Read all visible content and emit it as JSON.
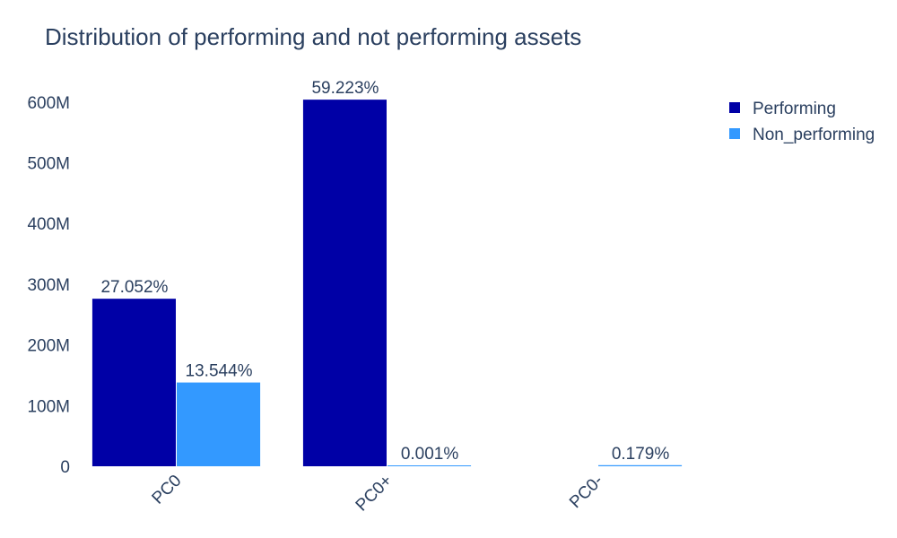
{
  "chart_data": {
    "type": "bar",
    "title": "Distribution of performing and not performing assets",
    "xlabel": "",
    "ylabel": "",
    "categories": [
      "PC0",
      "PC0+",
      "PC0-"
    ],
    "ylim": [
      0,
      650000000
    ],
    "yticks": [
      0,
      100000000,
      200000000,
      300000000,
      400000000,
      500000000,
      600000000
    ],
    "ytick_labels": [
      "0",
      "100M",
      "200M",
      "300M",
      "400M",
      "500M",
      "600M"
    ],
    "grid": false,
    "legend_position": "top-right",
    "series": [
      {
        "name": "Performing",
        "color": "#0000a6",
        "values": [
          276000000,
          604000000,
          null
        ],
        "labels": [
          "27.052%",
          "59.223%",
          ""
        ]
      },
      {
        "name": "Non_performing",
        "color": "#3399ff",
        "values": [
          138000000,
          10000,
          1800000
        ],
        "labels": [
          "13.544%",
          "0.001%",
          "0.179%"
        ]
      }
    ]
  }
}
